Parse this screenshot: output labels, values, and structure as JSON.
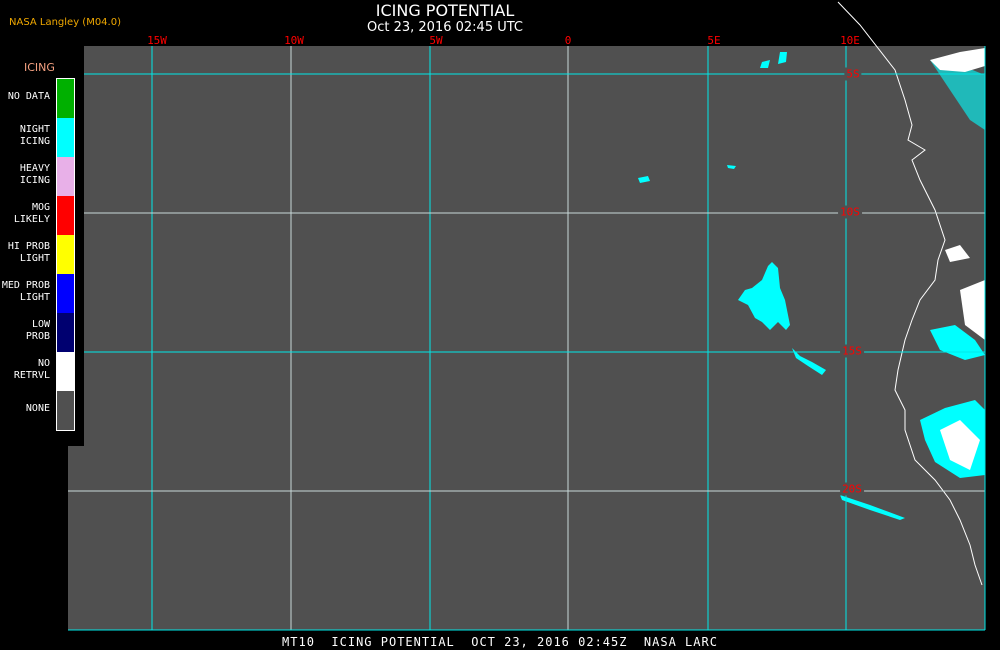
{
  "header": {
    "org": "NASA Langley (M04.0)",
    "title": "ICING POTENTIAL",
    "subtitle": "Oct 23, 2016 02:45 UTC"
  },
  "map": {
    "lon_labels": [
      "15W",
      "10W",
      "5W",
      "0",
      "5E",
      "10E"
    ],
    "lat_labels": [
      "5S",
      "10S",
      "15S",
      "20S"
    ],
    "background_color": "#505050",
    "grid_color": "#00e8e8",
    "coastline_color": "#ffffff"
  },
  "legend": {
    "title": "ICING",
    "items": [
      {
        "label": "NO DATA",
        "color": "#00b000"
      },
      {
        "label": "NIGHT ICING",
        "color": "#00ffff"
      },
      {
        "label": "HEAVY ICING",
        "color": "#e8b0e8"
      },
      {
        "label": "MOG LIKELY",
        "color": "#ff0000"
      },
      {
        "label": "HI PROB LIGHT",
        "color": "#ffff00"
      },
      {
        "label": "MED PROB LIGHT",
        "color": "#0000ff"
      },
      {
        "label": "LOW PROB",
        "color": "#000070"
      },
      {
        "label": "NO RETRVL",
        "color": "#ffffff"
      },
      {
        "label": "NONE",
        "color": "#505050"
      }
    ]
  },
  "footer": {
    "text": "MT10  ICING POTENTIAL  OCT 23, 2016 02:45Z  NASA LARC"
  }
}
